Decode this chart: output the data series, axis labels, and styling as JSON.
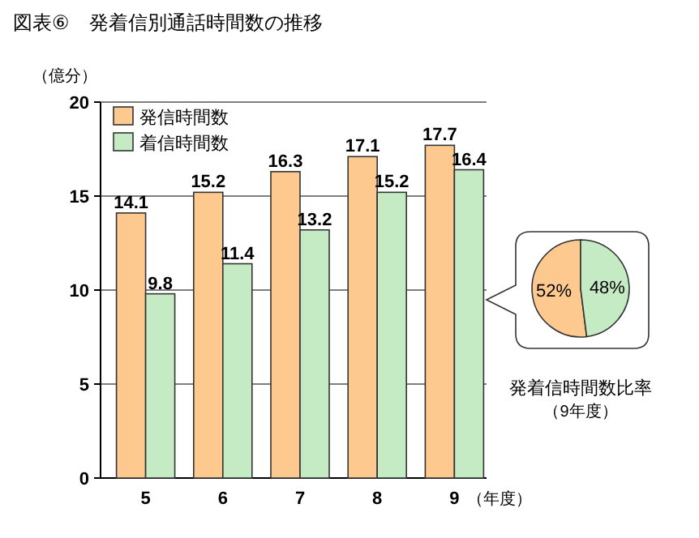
{
  "chart_data": [
    {
      "type": "bar",
      "title": "図表⑥　発着信別通話時間数の推移",
      "ylabel": "（億分）",
      "xlabel": "（年度）",
      "categories": [
        "5",
        "6",
        "7",
        "8",
        "9"
      ],
      "series": [
        {
          "name": "発信時間数",
          "color": "#fdc98f",
          "values": [
            14.1,
            15.2,
            16.3,
            17.1,
            17.7
          ]
        },
        {
          "name": "着信時間数",
          "color": "#c5ebc5",
          "values": [
            9.8,
            11.4,
            13.2,
            15.2,
            16.4
          ]
        }
      ],
      "ylim": [
        0,
        20
      ],
      "yticks": [
        0,
        5,
        10,
        15,
        20
      ],
      "grid": "y",
      "legend": "top left",
      "data_labels": true
    },
    {
      "type": "pie",
      "title": "発着信時間数比率",
      "subtitle": "（9年度）",
      "categories": [
        null,
        null
      ],
      "values": [
        52,
        48
      ],
      "colors": [
        "#fdc98f",
        "#c5ebc5"
      ],
      "value_labels": [
        "52%",
        "48%"
      ]
    }
  ]
}
